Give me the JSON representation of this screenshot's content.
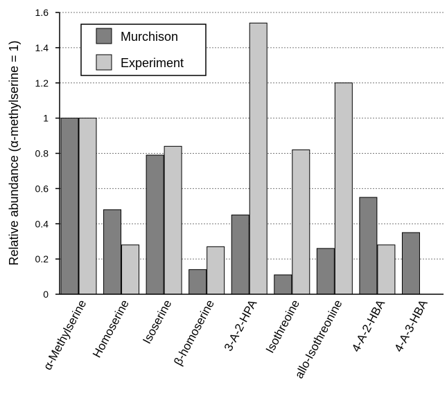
{
  "chart_data": {
    "type": "bar",
    "title": "",
    "xlabel": "",
    "ylabel": "Relative abundance (α-methylserine = 1)",
    "ylim": [
      0,
      1.6
    ],
    "yticks": [
      "0",
      "0.2",
      "0.4",
      "0.6",
      "0.8",
      "1",
      "1.2",
      "1.4",
      "1.6"
    ],
    "grid": "horizontal dotted",
    "legend_position": "top-left",
    "categories": [
      "α-Methylserine",
      "Homoserine",
      "Isoserine",
      "β-homoserine",
      "3-A-2-HPA",
      "Isothreoine",
      "allo-Isothreonine",
      "4-A-2-HBA",
      "4-A-3-HBA"
    ],
    "series": [
      {
        "name": "Murchison",
        "color": "#808080",
        "values": [
          1.0,
          0.48,
          0.79,
          0.14,
          0.45,
          0.11,
          0.26,
          0.55,
          0.35
        ]
      },
      {
        "name": "Experiment",
        "color": "#c8c8c8",
        "values": [
          1.0,
          0.28,
          0.84,
          0.27,
          1.54,
          0.82,
          1.2,
          0.28,
          null
        ]
      }
    ]
  }
}
